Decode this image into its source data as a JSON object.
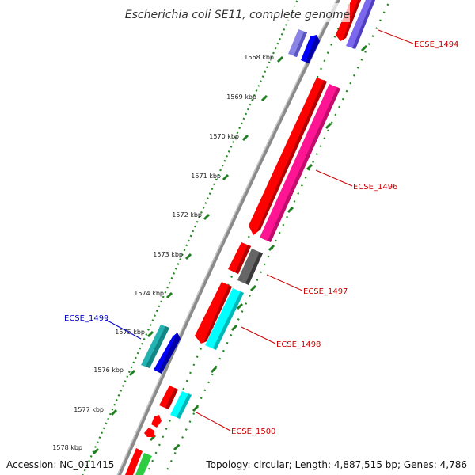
{
  "title": "Escherichia coli SE11, complete genome",
  "footer": {
    "accession": "Accession: NC_011415",
    "summary": "Topology: circular; Length: 4,887,515 bp; Genes: 4,786"
  },
  "ruler": {
    "labels": [
      "1568 kbp",
      "1569 kbp",
      "1570 kbp",
      "1571 kbp",
      "1572 kbp",
      "1573 kbp",
      "1574 kbp",
      "1575 kbp",
      "1576 kbp",
      "1577 kbp",
      "1578 kbp"
    ]
  },
  "colors": {
    "red": "#ff0000",
    "magenta": "#ff1493",
    "cyan": "#00ffff",
    "teal": "#20b2aa",
    "blue": "#0000ff",
    "lavender": "#7b68ee",
    "gray": "#606060",
    "green": "#2ecc40",
    "tick_green": "#2e8b22",
    "label_red": "#cc0000",
    "label_blue": "#0000cc"
  },
  "gene_labels": [
    {
      "id": "gene-label-ecse-1494",
      "text": "ECSE_1494",
      "color": "red"
    },
    {
      "id": "gene-label-ecse-1496",
      "text": "ECSE_1496",
      "color": "red"
    },
    {
      "id": "gene-label-ecse-1497",
      "text": "ECSE_1497",
      "color": "red"
    },
    {
      "id": "gene-label-ecse-1498",
      "text": "ECSE_1498",
      "color": "red"
    },
    {
      "id": "gene-label-ecse-1499",
      "text": "ECSE_1499",
      "color": "blue"
    },
    {
      "id": "gene-label-ecse-1500",
      "text": "ECSE_1500",
      "color": "red"
    }
  ]
}
